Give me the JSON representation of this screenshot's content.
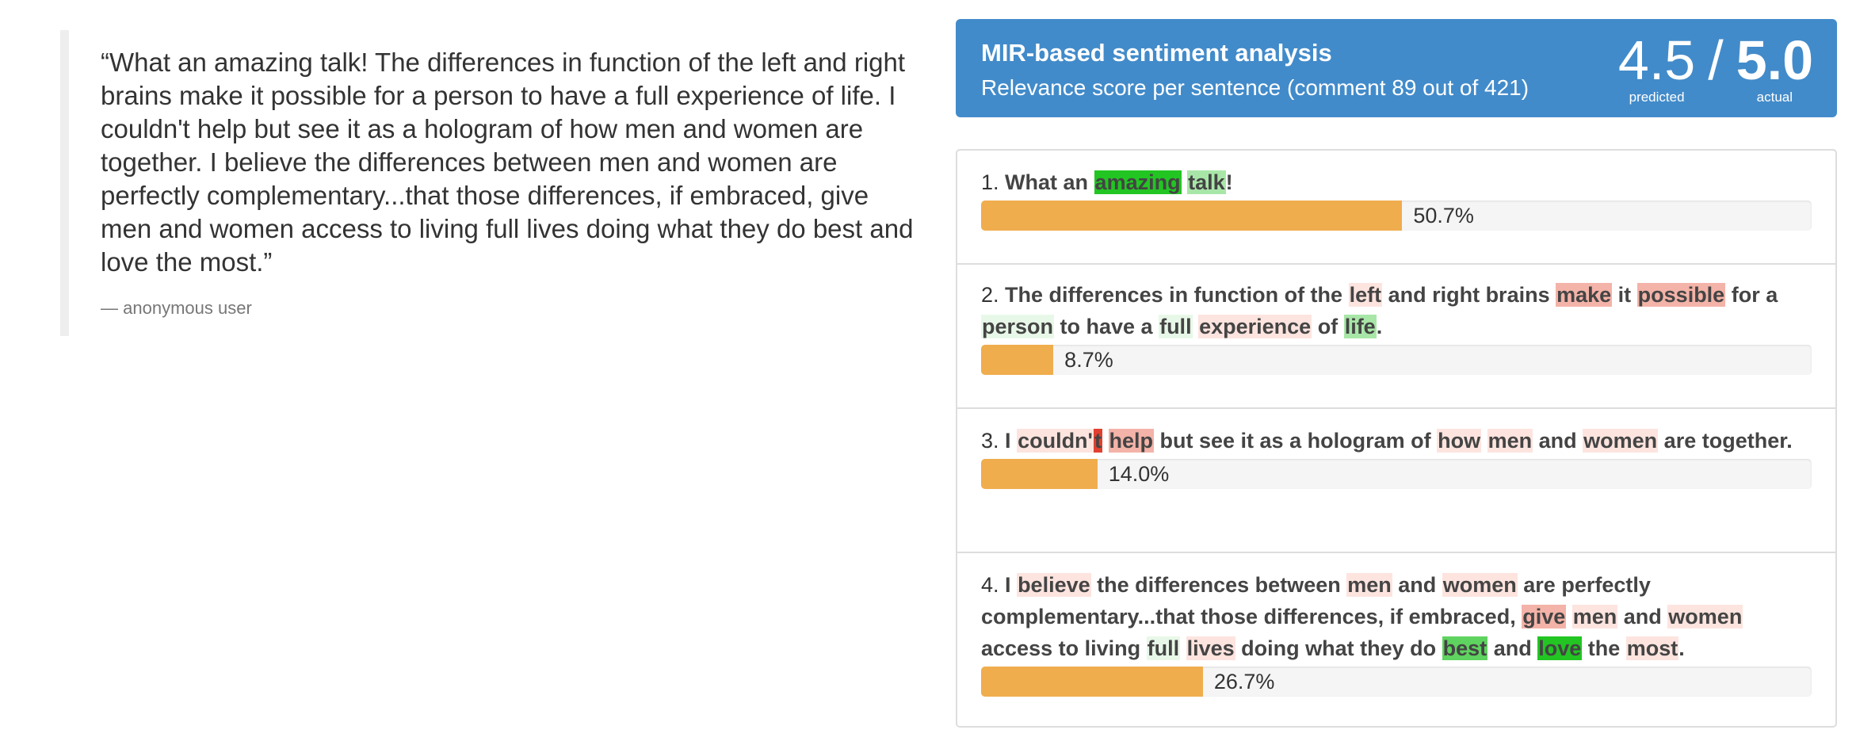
{
  "quote": {
    "text": "“What an amazing talk! The differences in function of the left and right brains make it possible for a person to have a full experience of life. I couldn't help but see it as a hologram of how men and women are together. I believe the differences between men and women are perfectly complementary...that those differences, if embraced, give men and women access to living full lives doing what they do best and love the most.”",
    "author": "anonymous user"
  },
  "header": {
    "title": "MIR-based sentiment analysis",
    "subtitle": "Relevance score per sentence (comment 89 out of 421)",
    "predicted_value": "4.5",
    "separator": "/",
    "actual_value": "5.0",
    "predicted_label": "predicted",
    "actual_label": "actual"
  },
  "colors": {
    "header_bg": "#428bca",
    "bar_fill": "#f0ad4e",
    "positive_strong": "#22c522",
    "positive_light": "#a8e6a8",
    "positive_faint": "#e8f8e8",
    "negative_strong": "#f4b3a8",
    "negative_light": "#fde4df",
    "negative_dark": "#e04030"
  },
  "sentences": [
    {
      "number": "1.",
      "percent_label": "50.7%",
      "relevance": 0.507,
      "tokens": [
        {
          "t": "What an ",
          "c": ""
        },
        {
          "t": "amazing",
          "c": "#22c522"
        },
        {
          "t": " ",
          "c": ""
        },
        {
          "t": "talk",
          "c": "#a8e6a8"
        },
        {
          "t": "!",
          "c": ""
        }
      ]
    },
    {
      "number": "2.",
      "percent_label": "8.7%",
      "relevance": 0.087,
      "tokens": [
        {
          "t": "The differences in function of the ",
          "c": ""
        },
        {
          "t": "left",
          "c": "#fde4df"
        },
        {
          "t": " and right brains ",
          "c": ""
        },
        {
          "t": "make",
          "c": "#f4b3a8"
        },
        {
          "t": " it ",
          "c": ""
        },
        {
          "t": "possible",
          "c": "#f4b3a8"
        },
        {
          "t": " for a ",
          "c": ""
        },
        {
          "t": "person",
          "c": "#e8f8e8"
        },
        {
          "t": " to have a ",
          "c": ""
        },
        {
          "t": "full",
          "c": "#e8f8e8"
        },
        {
          "t": " ",
          "c": ""
        },
        {
          "t": "experience",
          "c": "#fde4df"
        },
        {
          "t": " of ",
          "c": ""
        },
        {
          "t": "life",
          "c": "#a8e6a8"
        },
        {
          "t": ".",
          "c": ""
        }
      ]
    },
    {
      "number": "3.",
      "percent_label": "14.0%",
      "relevance": 0.14,
      "tokens": [
        {
          "t": "I ",
          "c": ""
        },
        {
          "t": "couldn'",
          "c": "#fde4df"
        },
        {
          "t": "t",
          "c": "#e04030"
        },
        {
          "t": " ",
          "c": ""
        },
        {
          "t": "help",
          "c": "#f4b3a8"
        },
        {
          "t": " but see it as a hologram of ",
          "c": ""
        },
        {
          "t": "how",
          "c": "#fde4df"
        },
        {
          "t": " ",
          "c": ""
        },
        {
          "t": "men",
          "c": "#fde4df"
        },
        {
          "t": " and ",
          "c": ""
        },
        {
          "t": "women",
          "c": "#fde4df"
        },
        {
          "t": " are together.",
          "c": ""
        }
      ]
    },
    {
      "number": "4.",
      "percent_label": "26.7%",
      "relevance": 0.267,
      "tokens": [
        {
          "t": "I ",
          "c": ""
        },
        {
          "t": "believe",
          "c": "#fde4df"
        },
        {
          "t": " the differences between ",
          "c": ""
        },
        {
          "t": "men",
          "c": "#fde4df"
        },
        {
          "t": " and ",
          "c": ""
        },
        {
          "t": "women",
          "c": "#fde4df"
        },
        {
          "t": " are perfectly complementary...that those differences, if embraced, ",
          "c": ""
        },
        {
          "t": "give",
          "c": "#f4b3a8"
        },
        {
          "t": " ",
          "c": ""
        },
        {
          "t": "men",
          "c": "#fde4df"
        },
        {
          "t": " and ",
          "c": ""
        },
        {
          "t": "women",
          "c": "#fde4df"
        },
        {
          "t": " access to living ",
          "c": ""
        },
        {
          "t": "full",
          "c": "#e8f8e8"
        },
        {
          "t": " ",
          "c": ""
        },
        {
          "t": "lives",
          "c": "#fde4df"
        },
        {
          "t": " doing what they do ",
          "c": ""
        },
        {
          "t": "best",
          "c": "#5fd35f"
        },
        {
          "t": " and ",
          "c": ""
        },
        {
          "t": "love",
          "c": "#22c522"
        },
        {
          "t": " the ",
          "c": ""
        },
        {
          "t": "most",
          "c": "#fde4df"
        },
        {
          "t": ".",
          "c": ""
        }
      ]
    }
  ]
}
